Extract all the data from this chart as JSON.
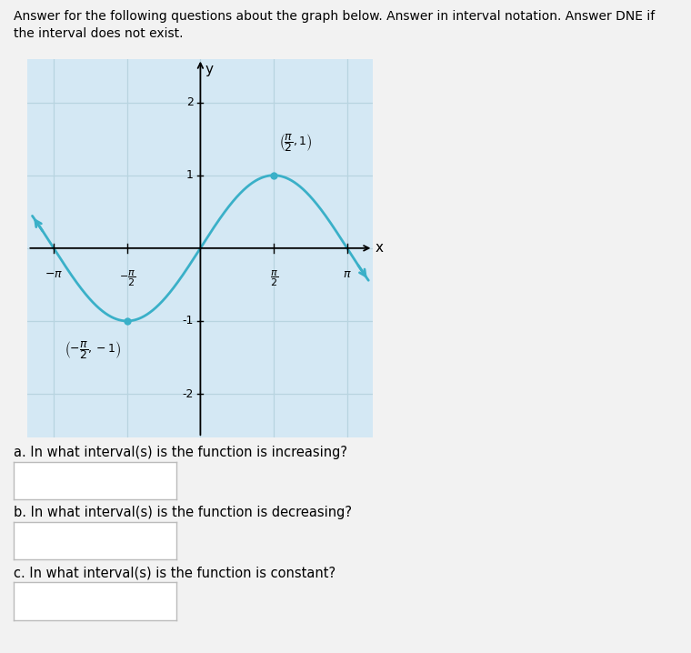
{
  "curve_color": "#3ab0c8",
  "curve_linewidth": 2.0,
  "grid_color": "#b8d4e0",
  "background_color": "#d4e8f4",
  "fig_background": "#f2f2f2",
  "axis_color": "#000000",
  "point_color": "#3ab0c8",
  "xlim": [
    -3.7,
    3.7
  ],
  "ylim": [
    -2.6,
    2.6
  ],
  "point1_x": -1.5708,
  "point1_y": -1,
  "point2_x": 1.5708,
  "point2_y": 1,
  "question_a": "a. In what interval(s) is the function is increasing?",
  "question_b": "b. In what interval(s) is the function is decreasing?",
  "question_c": "c. In what interval(s) is the function is constant?",
  "fig_width": 7.6,
  "fig_height": 7.18,
  "dpi": 100
}
